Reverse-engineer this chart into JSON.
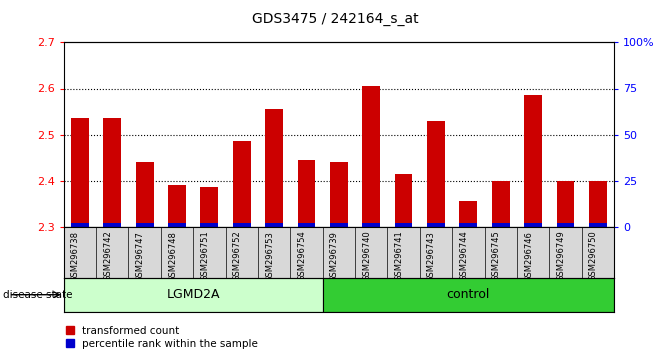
{
  "title": "GDS3475 / 242164_s_at",
  "samples": [
    "GSM296738",
    "GSM296742",
    "GSM296747",
    "GSM296748",
    "GSM296751",
    "GSM296752",
    "GSM296753",
    "GSM296754",
    "GSM296739",
    "GSM296740",
    "GSM296741",
    "GSM296743",
    "GSM296744",
    "GSM296745",
    "GSM296746",
    "GSM296749",
    "GSM296750"
  ],
  "transformed_count": [
    2.535,
    2.535,
    2.44,
    2.39,
    2.385,
    2.485,
    2.555,
    2.445,
    2.44,
    2.605,
    2.415,
    2.53,
    2.355,
    2.4,
    2.585,
    2.4,
    2.4
  ],
  "percentile_rank": [
    5,
    3,
    4,
    4,
    4,
    4,
    4,
    3,
    4,
    4,
    4,
    4,
    3,
    4,
    4,
    2,
    3
  ],
  "base": 2.3,
  "ylim_left": [
    2.3,
    2.7
  ],
  "ylim_right": [
    0,
    100
  ],
  "yticks_left": [
    2.3,
    2.4,
    2.5,
    2.6,
    2.7
  ],
  "yticks_right": [
    0,
    25,
    50,
    75,
    100
  ],
  "ytick_labels_right": [
    "0",
    "25",
    "50",
    "75",
    "100%"
  ],
  "groups": [
    {
      "label": "LGMD2A",
      "n_samples": 8
    },
    {
      "label": "control",
      "n_samples": 9
    }
  ],
  "group_colors": [
    "#ccffcc",
    "#33cc33"
  ],
  "disease_state_label": "disease state",
  "bar_color_red": "#cc0000",
  "bar_color_blue": "#0000cc",
  "bar_width": 0.55,
  "legend_items": [
    "transformed count",
    "percentile rank within the sample"
  ],
  "bg_color": "#d8d8d8",
  "blue_bar_height": 0.008,
  "title_fontsize": 10
}
